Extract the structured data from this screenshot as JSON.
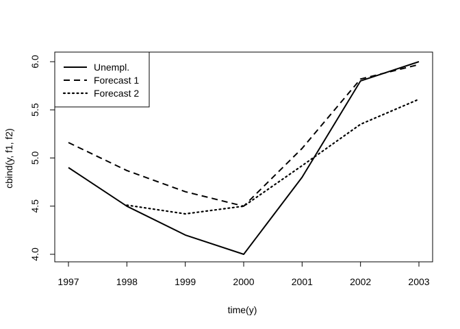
{
  "chart_data": {
    "type": "line",
    "xlabel": "time(y)",
    "ylabel": "cbind(y, f1, f2)",
    "x": [
      1997,
      1998,
      1999,
      2000,
      2001,
      2002,
      2003
    ],
    "x_ticks": [
      "1997",
      "1998",
      "1999",
      "2000",
      "2001",
      "2002",
      "2003"
    ],
    "xlim": [
      1997,
      2003
    ],
    "ylim": [
      4.0,
      6.0
    ],
    "y_ticks": [
      "4.0",
      "4.5",
      "5.0",
      "5.5",
      "6.0"
    ],
    "y_tick_values": [
      4.0,
      4.5,
      5.0,
      5.5,
      6.0
    ],
    "grid": false,
    "legend_position": "top-left",
    "series": [
      {
        "name": "Unempl.",
        "style": "solid",
        "values": [
          4.9,
          4.5,
          4.2,
          4.0,
          4.8,
          5.8,
          6.0
        ]
      },
      {
        "name": "Forecast 1",
        "style": "dashed",
        "values": [
          5.16,
          4.87,
          4.65,
          4.5,
          5.1,
          5.82,
          5.97
        ]
      },
      {
        "name": "Forecast 2",
        "style": "dotted",
        "values": [
          null,
          4.51,
          4.42,
          4.5,
          4.92,
          5.35,
          5.61
        ]
      }
    ],
    "line_color": "#000000"
  }
}
